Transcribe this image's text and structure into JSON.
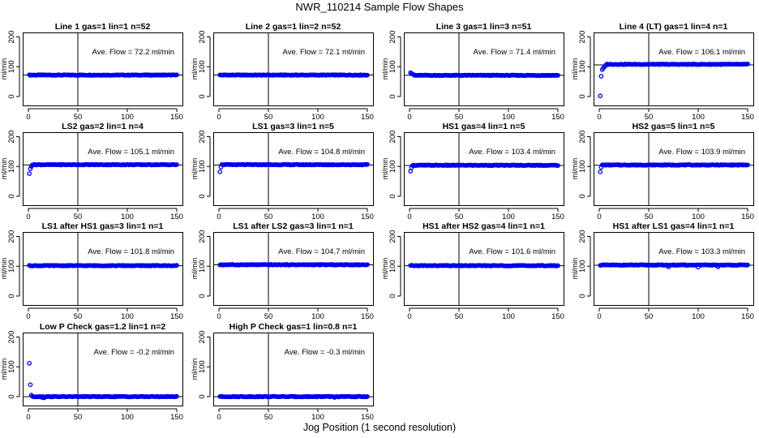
{
  "figure": {
    "title": "NWR_110214  Sample Flow Shapes",
    "xlabel": "Jog Position (1 second resolution)"
  },
  "chart_data": [
    {
      "type": "scatter",
      "title": "Line 1 gas=1 lin=1 n=52",
      "ylabel": "ml/min",
      "annotation": "Ave. Flow =  72.2  ml/min",
      "xlim": [
        0,
        150
      ],
      "ylim": [
        -30,
        215
      ],
      "xticks": [
        0,
        50,
        100,
        150
      ],
      "yticks": [
        0,
        100,
        200
      ],
      "vline": 50,
      "hline": 72.2,
      "series": [
        {
          "name": "flow",
          "x_start": 1,
          "x_end": 150,
          "level": 72,
          "initial": [],
          "dips": []
        }
      ]
    },
    {
      "type": "scatter",
      "title": "Line 2 gas=1 lin=2 n=52",
      "ylabel": "ml/min",
      "annotation": "Ave. Flow =  72.1  ml/min",
      "xlim": [
        0,
        150
      ],
      "ylim": [
        -30,
        215
      ],
      "xticks": [
        0,
        50,
        100,
        150
      ],
      "yticks": [
        0,
        100,
        200
      ],
      "vline": 50,
      "hline": 72.1,
      "series": [
        {
          "name": "flow",
          "x_start": 1,
          "x_end": 150,
          "level": 72,
          "initial": [],
          "dips": []
        }
      ]
    },
    {
      "type": "scatter",
      "title": "Line 3 gas=1 lin=3 n=51",
      "ylabel": "ml/min",
      "annotation": "Ave. Flow =  71.4  ml/min",
      "xlim": [
        0,
        150
      ],
      "ylim": [
        -30,
        215
      ],
      "xticks": [
        0,
        50,
        100,
        150
      ],
      "yticks": [
        0,
        100,
        200
      ],
      "vline": 50,
      "hline": 71.4,
      "series": [
        {
          "name": "flow",
          "x_start": 1,
          "x_end": 150,
          "level": 71,
          "initial": [
            [
              1,
              80
            ],
            [
              2,
              77
            ],
            [
              3,
              75
            ],
            [
              4,
              74
            ]
          ],
          "dips": []
        }
      ]
    },
    {
      "type": "scatter",
      "title": "Line 4 (LT) gas=1 lin=4 n=1",
      "ylabel": "ml/min",
      "annotation": "Ave. Flow =  106.1  ml/min",
      "xlim": [
        0,
        150
      ],
      "ylim": [
        -30,
        215
      ],
      "xticks": [
        0,
        50,
        100,
        150
      ],
      "yticks": [
        0,
        100,
        200
      ],
      "vline": 50,
      "hline": 106.1,
      "series": [
        {
          "name": "flow",
          "x_start": 1,
          "x_end": 150,
          "level": 108,
          "initial": [
            [
              1,
              2
            ],
            [
              2,
              68
            ],
            [
              3,
              90
            ],
            [
              4,
              95
            ],
            [
              5,
              99
            ],
            [
              6,
              102
            ]
          ],
          "dips": []
        }
      ]
    },
    {
      "type": "scatter",
      "title": "LS2 gas=2 lin=1 n=4",
      "ylabel": "ml/min",
      "annotation": "Ave. Flow =  105.1  ml/min",
      "xlim": [
        0,
        150
      ],
      "ylim": [
        -30,
        215
      ],
      "xticks": [
        0,
        50,
        100,
        150
      ],
      "yticks": [
        0,
        100,
        200
      ],
      "vline": 50,
      "hline": 105.1,
      "series": [
        {
          "name": "flow",
          "x_start": 1,
          "x_end": 150,
          "level": 106,
          "initial": [
            [
              1,
              76
            ],
            [
              2,
              92
            ],
            [
              3,
              100
            ]
          ],
          "dips": []
        }
      ]
    },
    {
      "type": "scatter",
      "title": "LS1 gas=3 lin=1 n=5",
      "ylabel": "ml/min",
      "annotation": "Ave. Flow =  104.8  ml/min",
      "xlim": [
        0,
        150
      ],
      "ylim": [
        -30,
        215
      ],
      "xticks": [
        0,
        50,
        100,
        150
      ],
      "yticks": [
        0,
        100,
        200
      ],
      "vline": 50,
      "hline": 104.8,
      "series": [
        {
          "name": "flow",
          "x_start": 1,
          "x_end": 150,
          "level": 106,
          "initial": [
            [
              1,
              82
            ],
            [
              2,
              98
            ]
          ],
          "dips": []
        }
      ]
    },
    {
      "type": "scatter",
      "title": "HS1 gas=4 lin=1 n=5",
      "ylabel": "ml/min",
      "annotation": "Ave. Flow =  103.4  ml/min",
      "xlim": [
        0,
        150
      ],
      "ylim": [
        -30,
        215
      ],
      "xticks": [
        0,
        50,
        100,
        150
      ],
      "yticks": [
        0,
        100,
        200
      ],
      "vline": 50,
      "hline": 103.4,
      "series": [
        {
          "name": "flow",
          "x_start": 1,
          "x_end": 150,
          "level": 104,
          "initial": [
            [
              1,
              84
            ],
            [
              2,
              96
            ]
          ],
          "dips": []
        }
      ]
    },
    {
      "type": "scatter",
      "title": "HS2 gas=5 lin=1 n=5",
      "ylabel": "ml/min",
      "annotation": "Ave. Flow =  103.9  ml/min",
      "xlim": [
        0,
        150
      ],
      "ylim": [
        -30,
        215
      ],
      "xticks": [
        0,
        50,
        100,
        150
      ],
      "yticks": [
        0,
        100,
        200
      ],
      "vline": 50,
      "hline": 103.9,
      "series": [
        {
          "name": "flow",
          "x_start": 1,
          "x_end": 150,
          "level": 105,
          "initial": [
            [
              1,
              82
            ],
            [
              2,
              97
            ]
          ],
          "dips": []
        }
      ]
    },
    {
      "type": "scatter",
      "title": "LS1 after HS1 gas=3 lin=1 n=1",
      "ylabel": "ml/min",
      "annotation": "Ave. Flow =  101.8  ml/min",
      "xlim": [
        0,
        150
      ],
      "ylim": [
        -30,
        215
      ],
      "xticks": [
        0,
        50,
        100,
        150
      ],
      "yticks": [
        0,
        100,
        200
      ],
      "vline": 50,
      "hline": 101.8,
      "series": [
        {
          "name": "flow",
          "x_start": 1,
          "x_end": 150,
          "level": 102,
          "initial": [],
          "dips": []
        }
      ]
    },
    {
      "type": "scatter",
      "title": "LS1 after LS2 gas=3 lin=1 n=1",
      "ylabel": "ml/min",
      "annotation": "Ave. Flow =  104.7  ml/min",
      "xlim": [
        0,
        150
      ],
      "ylim": [
        -30,
        215
      ],
      "xticks": [
        0,
        50,
        100,
        150
      ],
      "yticks": [
        0,
        100,
        200
      ],
      "vline": 50,
      "hline": 104.7,
      "series": [
        {
          "name": "flow",
          "x_start": 1,
          "x_end": 150,
          "level": 105,
          "initial": [],
          "dips": []
        }
      ]
    },
    {
      "type": "scatter",
      "title": "HS1 after HS2 gas=4 lin=1 n=1",
      "ylabel": "ml/min",
      "annotation": "Ave. Flow =  101.6  ml/min",
      "xlim": [
        0,
        150
      ],
      "ylim": [
        -30,
        215
      ],
      "xticks": [
        0,
        50,
        100,
        150
      ],
      "yticks": [
        0,
        100,
        200
      ],
      "vline": 50,
      "hline": 101.6,
      "series": [
        {
          "name": "flow",
          "x_start": 1,
          "x_end": 150,
          "level": 102,
          "initial": [],
          "dips": []
        }
      ]
    },
    {
      "type": "scatter",
      "title": "HS1 after LS1 gas=4 lin=1 n=1",
      "ylabel": "ml/min",
      "annotation": "Ave. Flow =  103.3  ml/min",
      "xlim": [
        0,
        150
      ],
      "ylim": [
        -30,
        215
      ],
      "xticks": [
        0,
        50,
        100,
        150
      ],
      "yticks": [
        0,
        100,
        200
      ],
      "vline": 50,
      "hline": 103.3,
      "series": [
        {
          "name": "flow",
          "x_start": 1,
          "x_end": 150,
          "level": 104,
          "initial": [],
          "dips": [
            [
              70,
              98
            ],
            [
              100,
              97
            ],
            [
              120,
              98
            ]
          ]
        }
      ]
    },
    {
      "type": "scatter",
      "title": "Low P Check gas=1.2 lin=1 n=2",
      "ylabel": "ml/min",
      "annotation": "Ave. Flow =  -0.2  ml/min",
      "xlim": [
        0,
        150
      ],
      "ylim": [
        -30,
        215
      ],
      "xticks": [
        0,
        50,
        100,
        150
      ],
      "yticks": [
        0,
        100,
        200
      ],
      "vline": 50,
      "hline": -0.2,
      "series": [
        {
          "name": "flow",
          "x_start": 1,
          "x_end": 150,
          "level": 0,
          "initial": [
            [
              1,
              112
            ],
            [
              2,
              40
            ],
            [
              3,
              5
            ],
            [
              4,
              1
            ]
          ],
          "dips": [
            [
              14,
              -3
            ],
            [
              16,
              -4
            ]
          ]
        }
      ]
    },
    {
      "type": "scatter",
      "title": "High P Check gas=1 lin=0.8 n=1",
      "ylabel": "ml/min",
      "annotation": "Ave. Flow =  -0.3  ml/min",
      "xlim": [
        0,
        150
      ],
      "ylim": [
        -30,
        215
      ],
      "xticks": [
        0,
        50,
        100,
        150
      ],
      "yticks": [
        0,
        100,
        200
      ],
      "vline": 50,
      "hline": -0.3,
      "series": [
        {
          "name": "flow",
          "x_start": 1,
          "x_end": 150,
          "level": 0,
          "initial": [],
          "dips": [
            [
              117,
              -3
            ]
          ]
        }
      ]
    }
  ],
  "colors": {
    "points": "#0000ee",
    "axes": "#000000",
    "background": "#ffffff"
  }
}
